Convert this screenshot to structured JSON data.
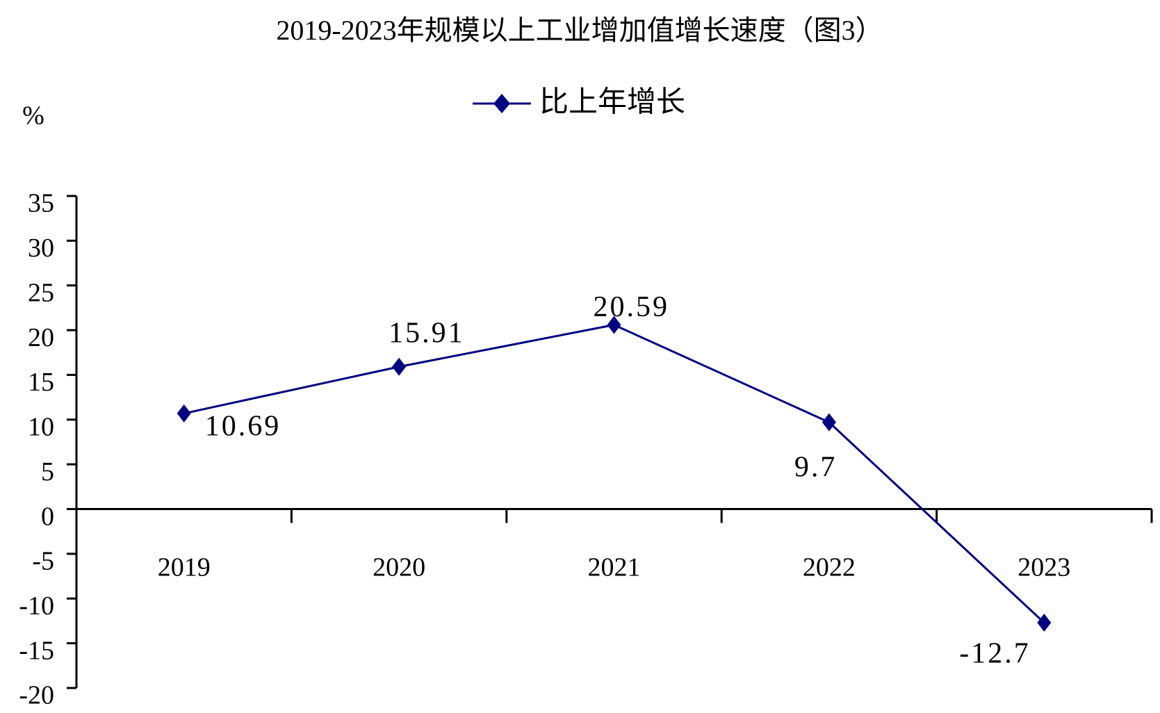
{
  "chart_data": {
    "type": "line",
    "title": "2019-2023年规模以上工业增加值增长速度（图3）",
    "y_label": "%",
    "categories": [
      "2019",
      "2020",
      "2021",
      "2022",
      "2023"
    ],
    "series": [
      {
        "name": "比上年增长",
        "color": "#000080",
        "values": [
          10.69,
          15.91,
          20.59,
          9.7,
          -12.7
        ]
      }
    ],
    "ylim": [
      -20,
      35
    ],
    "yticks": [
      -20,
      -15,
      -10,
      -5,
      0,
      5,
      10,
      15,
      20,
      25,
      30,
      35
    ],
    "legend": "top"
  }
}
